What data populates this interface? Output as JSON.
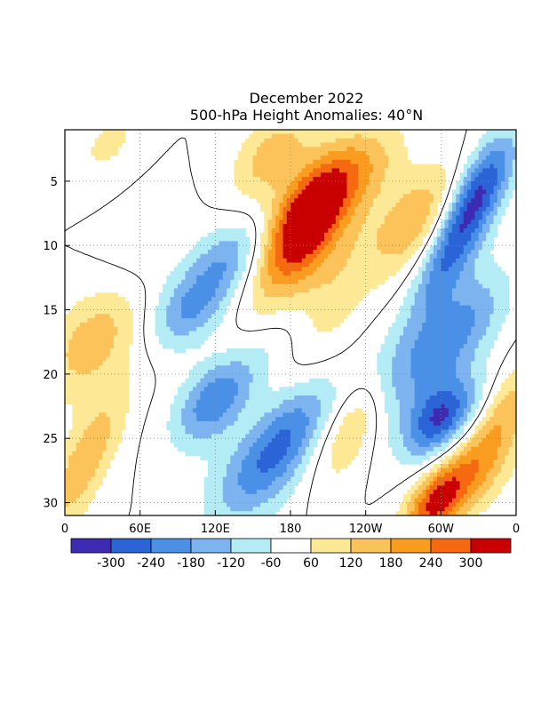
{
  "chart_data": {
    "type": "heatmap",
    "title": "December 2022",
    "subtitle": "500-hPa Height Anomalies: 40°N",
    "xlabel": "",
    "ylabel": "",
    "x_ticks": [
      "0",
      "60E",
      "120E",
      "180",
      "120W",
      "60W",
      "0"
    ],
    "y_ticks": [
      "5",
      "10",
      "15",
      "20",
      "25",
      "30"
    ],
    "xlim": [
      0,
      360
    ],
    "ylim": [
      31,
      1
    ],
    "grid": true,
    "colorbar": {
      "tick_labels": [
        "-300",
        "-240",
        "-180",
        "-120",
        "-60",
        "60",
        "120",
        "180",
        "240",
        "300"
      ],
      "levels": [
        -360,
        -300,
        -240,
        -180,
        -120,
        -60,
        60,
        120,
        180,
        240,
        300,
        360
      ],
      "colors": [
        "#3d2bb3",
        "#2a64d6",
        "#4a90e6",
        "#7db4f0",
        "#b4ecf6",
        "#ffffff",
        "#fde896",
        "#fbc35a",
        "#f99c20",
        "#f56a10",
        "#c80000"
      ]
    },
    "contour_label": "0",
    "features": [
      {
        "lon": 195,
        "day": 7.5,
        "value": 330,
        "sx": 18,
        "sy": 3.0
      },
      {
        "lon": 180,
        "day": 12,
        "value": 180,
        "sx": 25,
        "sy": 6
      },
      {
        "lon": 165,
        "day": 3,
        "value": 150,
        "sx": 20,
        "sy": 2.5
      },
      {
        "lon": 205,
        "day": 16,
        "value": 110,
        "sx": 20,
        "sy": 5
      },
      {
        "lon": 25,
        "day": 17,
        "value": 170,
        "sx": 25,
        "sy": 3.5
      },
      {
        "lon": 15,
        "day": 27,
        "value": 170,
        "sx": 15,
        "sy": 4
      },
      {
        "lon": 35,
        "day": 2,
        "value": 80,
        "sx": 15,
        "sy": 2
      },
      {
        "lon": 100,
        "day": 15,
        "value": -180,
        "sx": 22,
        "sy": 2.2
      },
      {
        "lon": 130,
        "day": 11,
        "value": -160,
        "sx": 20,
        "sy": 2.2
      },
      {
        "lon": 170,
        "day": 17,
        "value": -150,
        "sx": 25,
        "sy": 3
      },
      {
        "lon": 120,
        "day": 22,
        "value": -250,
        "sx": 20,
        "sy": 2.5
      },
      {
        "lon": 180,
        "day": 24,
        "value": -200,
        "sx": 20,
        "sy": 3
      },
      {
        "lon": 150,
        "day": 28,
        "value": -160,
        "sx": 25,
        "sy": 3
      },
      {
        "lon": 280,
        "day": 8,
        "value": 170,
        "sx": 20,
        "sy": 3
      },
      {
        "lon": 240,
        "day": 4,
        "value": 110,
        "sx": 20,
        "sy": 2.5
      },
      {
        "lon": 270,
        "day": 20,
        "value": -150,
        "sx": 25,
        "sy": 3
      },
      {
        "lon": 300,
        "day": 23.5,
        "value": -300,
        "sx": 18,
        "sy": 2.2
      },
      {
        "lon": 295,
        "day": 30,
        "value": 280,
        "sx": 15,
        "sy": 2.2
      },
      {
        "lon": 330,
        "day": 27,
        "value": 180,
        "sx": 20,
        "sy": 3
      },
      {
        "lon": 310,
        "day": 10,
        "value": -250,
        "sx": 15,
        "sy": 4
      },
      {
        "lon": 335,
        "day": 5,
        "value": -190,
        "sx": 15,
        "sy": 3
      },
      {
        "lon": 320,
        "day": 16,
        "value": -170,
        "sx": 20,
        "sy": 3
      },
      {
        "lon": 355,
        "day": 22,
        "value": 100,
        "sx": 12,
        "sy": 3
      },
      {
        "lon": 230,
        "day": 24,
        "value": 150,
        "sx": 15,
        "sy": 3
      },
      {
        "lon": 55,
        "day": 12,
        "value": -60,
        "sx": 25,
        "sy": 3
      }
    ]
  }
}
